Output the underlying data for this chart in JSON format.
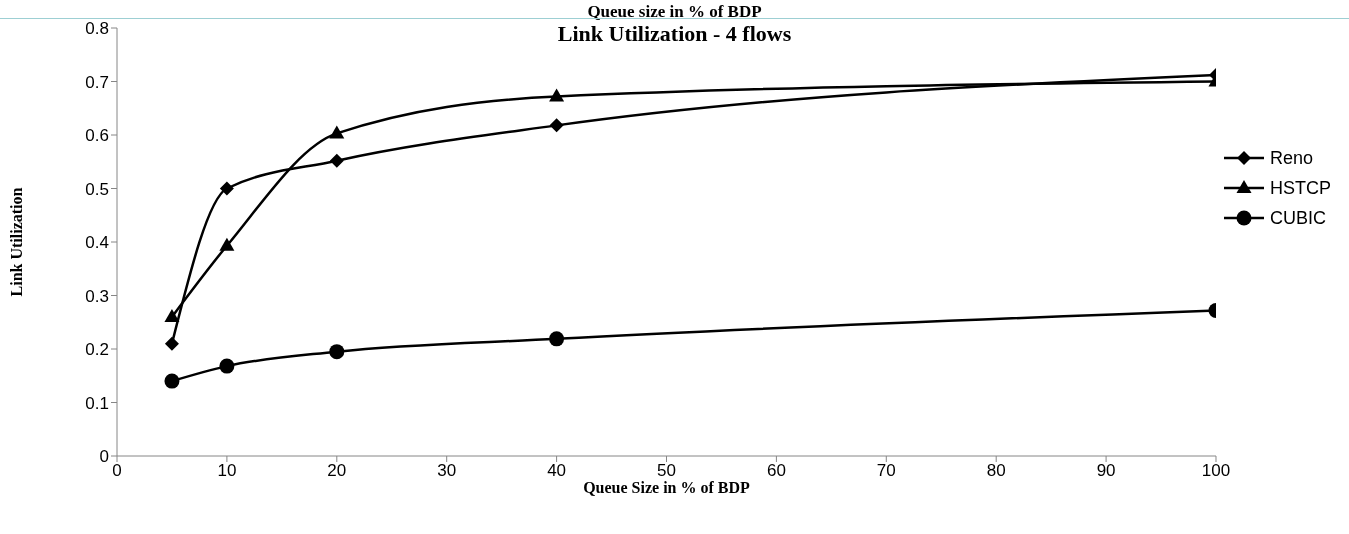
{
  "chart_data": {
    "type": "line",
    "title": "Link Utilization - 4 flows",
    "xlabel": "Queue Size in % of BDP",
    "ylabel": "Link Utilization",
    "annotations": [
      "Queue size in % of BDP"
    ],
    "x": [
      5,
      10,
      20,
      40,
      100
    ],
    "series": [
      {
        "name": "Reno",
        "color": "#000000",
        "marker": "diamond",
        "values": [
          0.21,
          0.5,
          0.552,
          0.618,
          0.712
        ]
      },
      {
        "name": "HSTCP",
        "color": "#000000",
        "marker": "triangle",
        "values": [
          0.26,
          0.393,
          0.603,
          0.672,
          0.7
        ]
      },
      {
        "name": "CUBIC",
        "color": "#000000",
        "marker": "circle",
        "values": [
          0.14,
          0.168,
          0.195,
          0.219,
          0.272
        ]
      }
    ],
    "xlim": [
      0,
      100
    ],
    "xticks": [
      0,
      10,
      20,
      30,
      40,
      50,
      60,
      70,
      80,
      90,
      100
    ],
    "ylim": [
      0,
      0.8
    ],
    "yticks": [
      0,
      0.1,
      0.2,
      0.3,
      0.4,
      0.5,
      0.6,
      0.7,
      0.8
    ],
    "grid": false,
    "legend": "right",
    "line_style": "solid"
  }
}
